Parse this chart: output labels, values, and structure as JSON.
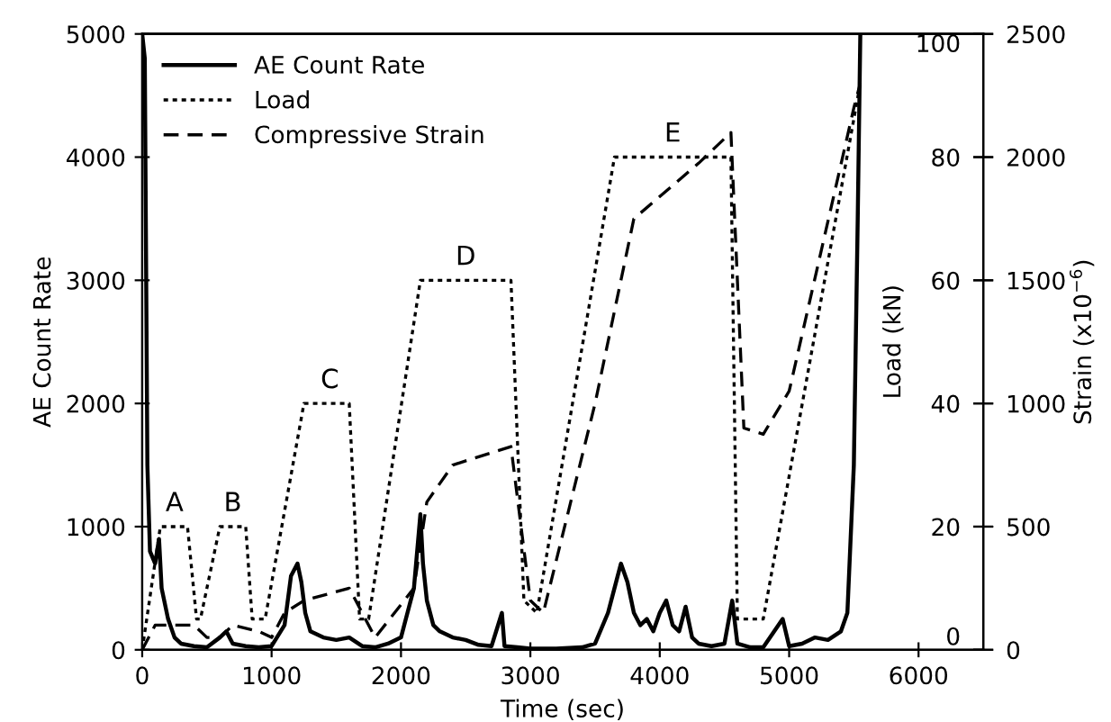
{
  "chart_data": {
    "type": "line",
    "xlabel": "Time (sec)",
    "ylabel": "AE Count Rate",
    "y2label": "Load (kN)",
    "y3label": "Strain (x10$^{−6}$)",
    "xlim": [
      0,
      6500
    ],
    "xticks": [
      0,
      1000,
      2000,
      3000,
      4000,
      5000,
      6000
    ],
    "ylim": [
      0,
      5000
    ],
    "yticks": [
      0,
      1000,
      2000,
      3000,
      4000,
      5000
    ],
    "y2lim": [
      0,
      100
    ],
    "y2ticks": [
      0,
      20,
      40,
      60,
      80,
      100
    ],
    "y3lim": [
      0,
      2500
    ],
    "y3ticks": [
      0,
      500,
      1000,
      1500,
      2000,
      2500
    ],
    "legend": "top left",
    "grid": false,
    "annotations": [
      {
        "text": "A",
        "x": 250,
        "y": 1000
      },
      {
        "text": "B",
        "x": 700,
        "y": 1000
      },
      {
        "text": "C",
        "x": 1450,
        "y": 2000
      },
      {
        "text": "D",
        "x": 2500,
        "y": 3000
      },
      {
        "text": "E",
        "x": 4100,
        "y": 4000
      }
    ],
    "series": [
      {
        "name": "AE Count Rate",
        "color": "#000000",
        "line_style": "solid",
        "x": [
          0,
          20,
          40,
          60,
          100,
          130,
          150,
          200,
          250,
          300,
          400,
          500,
          600,
          650,
          700,
          800,
          900,
          1000,
          1100,
          1150,
          1200,
          1230,
          1260,
          1300,
          1400,
          1500,
          1600,
          1700,
          1800,
          1900,
          2000,
          2050,
          2100,
          2150,
          2170,
          2200,
          2250,
          2300,
          2400,
          2500,
          2600,
          2700,
          2780,
          2800,
          2900,
          3000,
          3200,
          3400,
          3500,
          3600,
          3650,
          3700,
          3750,
          3800,
          3850,
          3900,
          3950,
          4000,
          4050,
          4100,
          4150,
          4200,
          4250,
          4300,
          4400,
          4500,
          4560,
          4600,
          4700,
          4800,
          4950,
          5000,
          5100,
          5200,
          5300,
          5400,
          5450,
          5500,
          5530,
          5550
        ],
        "values": [
          5000,
          4800,
          1500,
          800,
          700,
          900,
          500,
          250,
          100,
          50,
          30,
          20,
          100,
          150,
          50,
          30,
          20,
          30,
          200,
          600,
          700,
          550,
          300,
          150,
          100,
          80,
          100,
          30,
          20,
          50,
          100,
          300,
          500,
          1100,
          700,
          400,
          200,
          150,
          100,
          80,
          40,
          30,
          300,
          30,
          20,
          10,
          10,
          20,
          50,
          300,
          500,
          700,
          550,
          300,
          200,
          250,
          150,
          300,
          400,
          200,
          150,
          350,
          100,
          50,
          30,
          50,
          400,
          50,
          20,
          20,
          250,
          30,
          50,
          100,
          80,
          150,
          300,
          1500,
          3500,
          5000
        ]
      },
      {
        "name": "Load",
        "color": "#000000",
        "line_style": "dotted",
        "axis": "y2",
        "x": [
          0,
          140,
          350,
          420,
          450,
          600,
          800,
          850,
          950,
          1250,
          1600,
          1680,
          1750,
          2150,
          2850,
          2950,
          3050,
          3650,
          4550,
          4600,
          4800,
          5550
        ],
        "values": [
          0,
          20,
          20,
          5,
          5,
          20,
          20,
          5,
          5,
          40,
          40,
          5,
          5,
          60,
          60,
          8,
          6,
          80,
          80,
          5,
          5,
          92
        ]
      },
      {
        "name": "Compressive Strain",
        "color": "#000000",
        "line_style": "dashed",
        "axis": "y3",
        "x": [
          0,
          100,
          200,
          400,
          500,
          600,
          700,
          900,
          1000,
          1100,
          1250,
          1600,
          1800,
          2100,
          2200,
          2400,
          2850,
          3000,
          3100,
          3500,
          3800,
          4300,
          4550,
          4650,
          4800,
          5000,
          5500,
          5550
        ],
        "values": [
          0,
          100,
          100,
          100,
          50,
          50,
          100,
          75,
          50,
          150,
          200,
          250,
          50,
          250,
          600,
          750,
          825,
          200,
          150,
          1000,
          1750,
          1975,
          2100,
          900,
          875,
          1050,
          2200,
          2300
        ]
      }
    ]
  }
}
